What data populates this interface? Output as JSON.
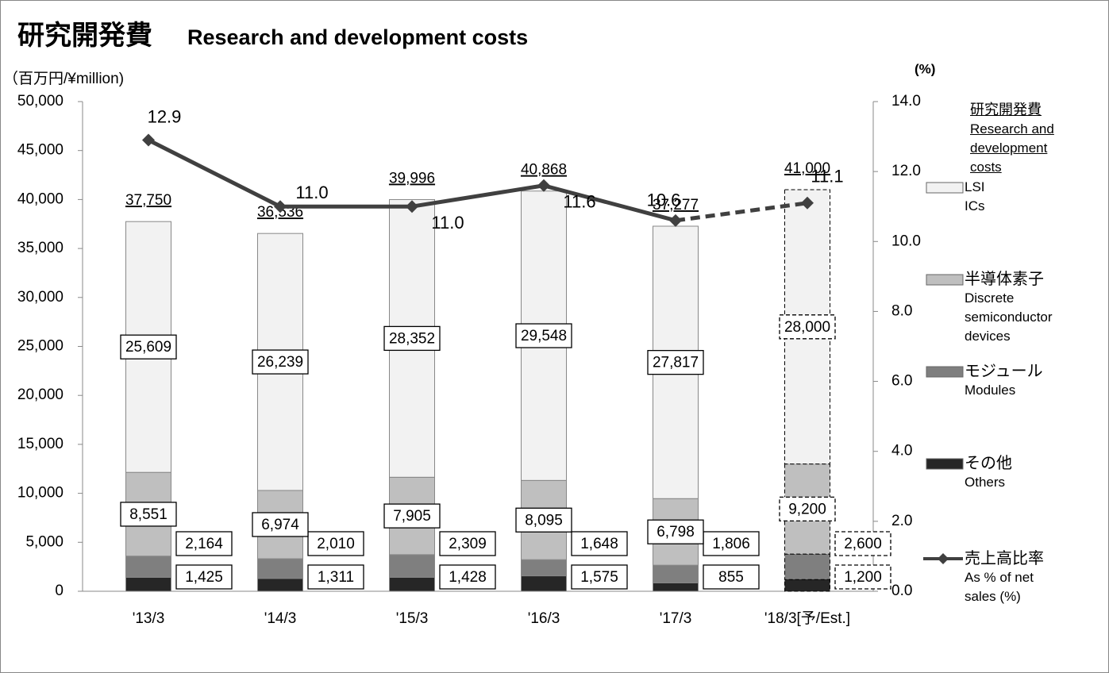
{
  "chart_data": {
    "type": "bar",
    "title": "研究開発費",
    "subtitle": "Research and development costs",
    "y_label": "（百万円/¥million)",
    "y2_label": "(%)",
    "legend_title": "研究開発費",
    "legend_subtitle": "Research and development costs",
    "categories": [
      "'13/3",
      "'14/3",
      "'15/3",
      "'16/3",
      "'17/3",
      "'18/3[予/Est.]"
    ],
    "series": [
      {
        "name": "その他",
        "name_en": "Others",
        "type": "bar",
        "color": "#262626",
        "values": [
          1425,
          1311,
          1428,
          1575,
          855,
          1200
        ],
        "value_labels": [
          "1,425",
          "1,311",
          "1,428",
          "1,575",
          "855",
          "1,200"
        ]
      },
      {
        "name": "モジュール",
        "name_en": "Modules",
        "type": "bar",
        "color": "#7f7f7f",
        "values": [
          2164,
          2010,
          2309,
          1648,
          1806,
          2600
        ],
        "value_labels": [
          "2,164",
          "2,010",
          "2,309",
          "1,648",
          "1,806",
          "2,600"
        ]
      },
      {
        "name": "半導体素子",
        "name_en": "Discrete semiconductor devices",
        "type": "bar",
        "color": "#bfbfbf",
        "values": [
          8551,
          6974,
          7905,
          8095,
          6798,
          9200
        ],
        "value_labels": [
          "8,551",
          "6,974",
          "7,905",
          "8,095",
          "6,798",
          "9,200"
        ]
      },
      {
        "name": "LSI",
        "name_en": "ICs",
        "type": "bar",
        "color": "#f2f2f2",
        "values": [
          25609,
          26239,
          28352,
          29548,
          27817,
          28000
        ],
        "value_labels": [
          "25,609",
          "26,239",
          "28,352",
          "29,548",
          "27,817",
          "28,000"
        ]
      },
      {
        "name": "売上高比率",
        "name_en": "As % of net sales (%)",
        "type": "line",
        "axis": "y2",
        "color": "#404040",
        "values": [
          12.9,
          11.0,
          11.0,
          11.6,
          10.6,
          11.1
        ],
        "value_labels": [
          "12.9",
          "11.0",
          "11.0",
          "11.6",
          "10.6",
          "11.1"
        ]
      }
    ],
    "totals": {
      "values": [
        37750,
        36536,
        39996,
        40868,
        37277,
        41000
      ],
      "value_labels": [
        "37,750",
        "36,536",
        "39,996",
        "40,868",
        "37,277",
        "41,000"
      ]
    },
    "ylim": [
      0,
      50000
    ],
    "yticks": [
      {
        "value": 0,
        "label": "0"
      },
      {
        "value": 5000,
        "label": "5,000"
      },
      {
        "value": 10000,
        "label": "10,000"
      },
      {
        "value": 15000,
        "label": "15,000"
      },
      {
        "value": 20000,
        "label": "20,000"
      },
      {
        "value": 25000,
        "label": "25,000"
      },
      {
        "value": 30000,
        "label": "30,000"
      },
      {
        "value": 35000,
        "label": "35,000"
      },
      {
        "value": 40000,
        "label": "40,000"
      },
      {
        "value": 45000,
        "label": "45,000"
      },
      {
        "value": 50000,
        "label": "50,000"
      }
    ],
    "y2lim": [
      0,
      14
    ],
    "y2ticks": [
      {
        "value": 0,
        "label": "0.0"
      },
      {
        "value": 2,
        "label": "2.0"
      },
      {
        "value": 4,
        "label": "4.0"
      },
      {
        "value": 6,
        "label": "6.0"
      },
      {
        "value": 8,
        "label": "8.0"
      },
      {
        "value": 10,
        "label": "10.0"
      },
      {
        "value": 12,
        "label": "12.0"
      },
      {
        "value": 14,
        "label": "14.0"
      }
    ],
    "grid": false
  }
}
